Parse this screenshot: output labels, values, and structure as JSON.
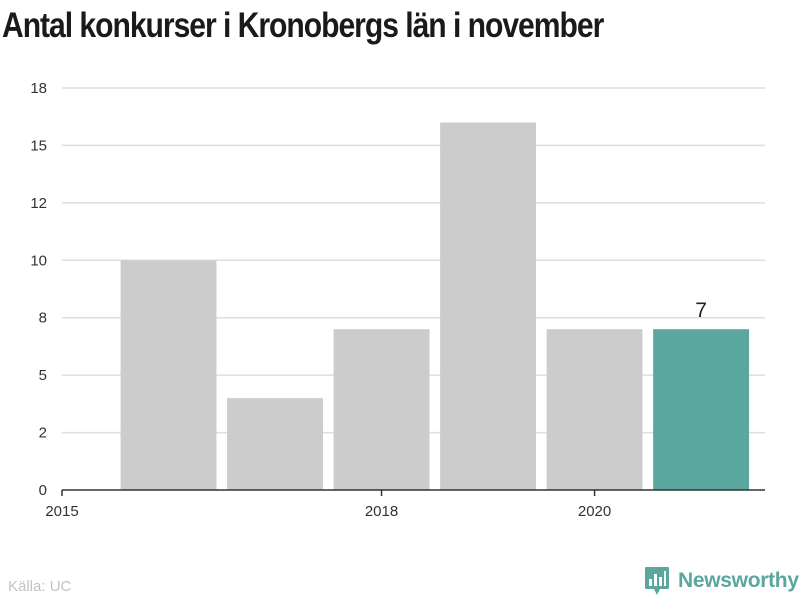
{
  "title": "Antal konkurser i Kronobergs län i november",
  "source": "Källa: UC",
  "brand": {
    "name": "Newsworthy",
    "icon": "newsworthy-logo-icon",
    "color": "#5aa79d"
  },
  "chart_data": {
    "type": "bar",
    "title": "Antal konkurser i Kronobergs län i november",
    "x": [
      2016,
      2017,
      2018,
      2019,
      2020,
      2021
    ],
    "values": [
      10,
      4,
      7,
      16,
      7,
      7
    ],
    "highlight_index": 5,
    "data_labels": [
      {
        "index": 5,
        "text": "7"
      }
    ],
    "colors": {
      "default": "#cccccc",
      "highlight": "#5aa79d"
    },
    "xlim": [
      2015,
      2021.6
    ],
    "xticks": [
      2015,
      2018,
      2020
    ],
    "xtick_labels": [
      "2015",
      "2018",
      "2020"
    ],
    "ylim": [
      0,
      17.5
    ],
    "yticks": [
      0,
      2.5,
      5,
      7.5,
      10,
      12.5,
      15,
      17.5
    ],
    "ytick_labels": [
      "0",
      "2",
      "5",
      "8",
      "10",
      "12",
      "15",
      "18"
    ],
    "grid": true,
    "xlabel": "",
    "ylabel": ""
  }
}
